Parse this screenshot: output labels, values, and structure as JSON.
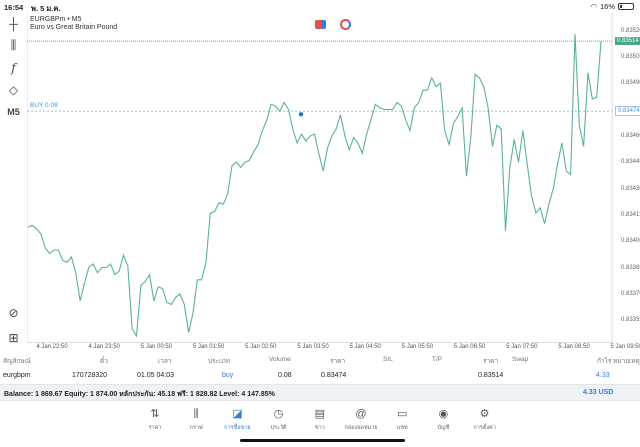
{
  "status": {
    "time": "16:54",
    "date": "พ. 5 ม.ค.",
    "battery": "16%",
    "battery_level": 0.16
  },
  "toolbar": {
    "timeframe": "M5"
  },
  "chart_header": {
    "symbol": "EURGBPm • M5",
    "description": "Euro vs Great Britain Pound"
  },
  "colors": {
    "line": "#5cb38e",
    "buy": "#4a90e2",
    "accent": "#3a7bd5",
    "current_price_bg": "#4aa88a"
  },
  "chart_data": {
    "type": "line",
    "ylim": [
      0.83342,
      0.8353
    ],
    "y_ticks": [
      "0.83520",
      "0.83505",
      "0.83490",
      "0.83460",
      "0.83445",
      "0.83430",
      "0.83415",
      "0.83400",
      "0.83385",
      "0.83370",
      "0.83355"
    ],
    "x_ticks": [
      "4 Jan 22:50",
      "4 Jan 23:50",
      "5 Jan 00:50",
      "5 Jan 01:50",
      "5 Jan 02:50",
      "5 Jan 03:50",
      "5 Jan 04:50",
      "5 Jan 05:50",
      "5 Jan 06:50",
      "5 Jan 07:50",
      "5 Jan 08:50",
      "5 Jan 09:50"
    ],
    "current_price": "0.83514",
    "buy_price": "0.83474",
    "buy_label": "BUY 0.08",
    "values": [
      0.83408,
      0.83409,
      0.83407,
      0.83404,
      0.83396,
      0.83393,
      0.83395,
      0.83395,
      0.83389,
      0.83388,
      0.83391,
      0.83382,
      0.83366,
      0.83376,
      0.83385,
      0.83387,
      0.83382,
      0.83385,
      0.83385,
      0.83387,
      0.83381,
      0.83383,
      0.83392,
      0.83386,
      0.8335,
      0.83346,
      0.83375,
      0.83377,
      0.83381,
      0.83366,
      0.83374,
      0.83373,
      0.83365,
      0.83364,
      0.83368,
      0.8337,
      0.83364,
      0.83348,
      0.83359,
      0.83378,
      0.83378,
      0.83388,
      0.83416,
      0.83417,
      0.83422,
      0.83421,
      0.83427,
      0.83443,
      0.83445,
      0.83442,
      0.83445,
      0.83446,
      0.83451,
      0.83455,
      0.83463,
      0.83469,
      0.83478,
      0.83477,
      0.83474,
      0.83479,
      0.83475,
      0.83464,
      0.83456,
      0.83461,
      0.83457,
      0.8346,
      0.83461,
      0.8345,
      0.8344,
      0.83453,
      0.8346,
      0.83464,
      0.83472,
      0.8346,
      0.83452,
      0.83459,
      0.83456,
      0.8345,
      0.83461,
      0.83469,
      0.83478,
      0.83476,
      0.83475,
      0.83475,
      0.83475,
      0.83479,
      0.83477,
      0.83469,
      0.83463,
      0.83476,
      0.83479,
      0.83486,
      0.83486,
      0.83493,
      0.83488,
      0.8349,
      0.83463,
      0.83455,
      0.83467,
      0.83471,
      0.83476,
      0.83437,
      0.83459,
      0.83495,
      0.83493,
      0.83488,
      0.83476,
      0.83454,
      0.83466,
      0.83464,
      0.83406,
      0.83442,
      0.83458,
      0.83445,
      0.83463,
      0.83444,
      0.83426,
      0.83416,
      0.83419,
      0.8341,
      0.83421,
      0.8343,
      0.83444,
      0.83456,
      0.8344,
      0.83438,
      0.83518,
      0.83466,
      0.83454,
      0.83496,
      0.83481,
      0.83482,
      0.83514
    ]
  },
  "table": {
    "headers": [
      "สัญลักษณ์",
      "ตั๋ว",
      "เวลา",
      "ประเภท",
      "Volume",
      "ราคา",
      "S/L",
      "T/P",
      "ราคา",
      "Swap",
      "กำไร",
      "หมายเหตุ"
    ],
    "row": {
      "symbol": "eurgbpm",
      "ticket": "170728320",
      "time": "01.05 04:03",
      "type": "buy",
      "volume": "0.08",
      "open_price": "0.83474",
      "current_price": "0.83514",
      "profit": "4.33"
    }
  },
  "balance": {
    "text": "Balance: 1 869.67 Equity: 1 874.00 หลักประกัน: 45.18 ฟรี: 1 828.82 Level: 4 147.85%",
    "profit": "4.33  USD"
  },
  "nav": [
    {
      "label": "ราคา",
      "icon": "quotes-icon"
    },
    {
      "label": "กราฟ",
      "icon": "chart-icon"
    },
    {
      "label": "การซื้อขาย",
      "icon": "trade-icon",
      "active": true
    },
    {
      "label": "ประวัติ",
      "icon": "history-icon"
    },
    {
      "label": "ข่าว",
      "icon": "news-icon"
    },
    {
      "label": "กล่องจดหมาย",
      "icon": "mailbox-icon"
    },
    {
      "label": "แชท",
      "icon": "chat-icon"
    },
    {
      "label": "บัญชี",
      "icon": "account-icon"
    },
    {
      "label": "การตั้งค่า",
      "icon": "settings-icon"
    }
  ]
}
